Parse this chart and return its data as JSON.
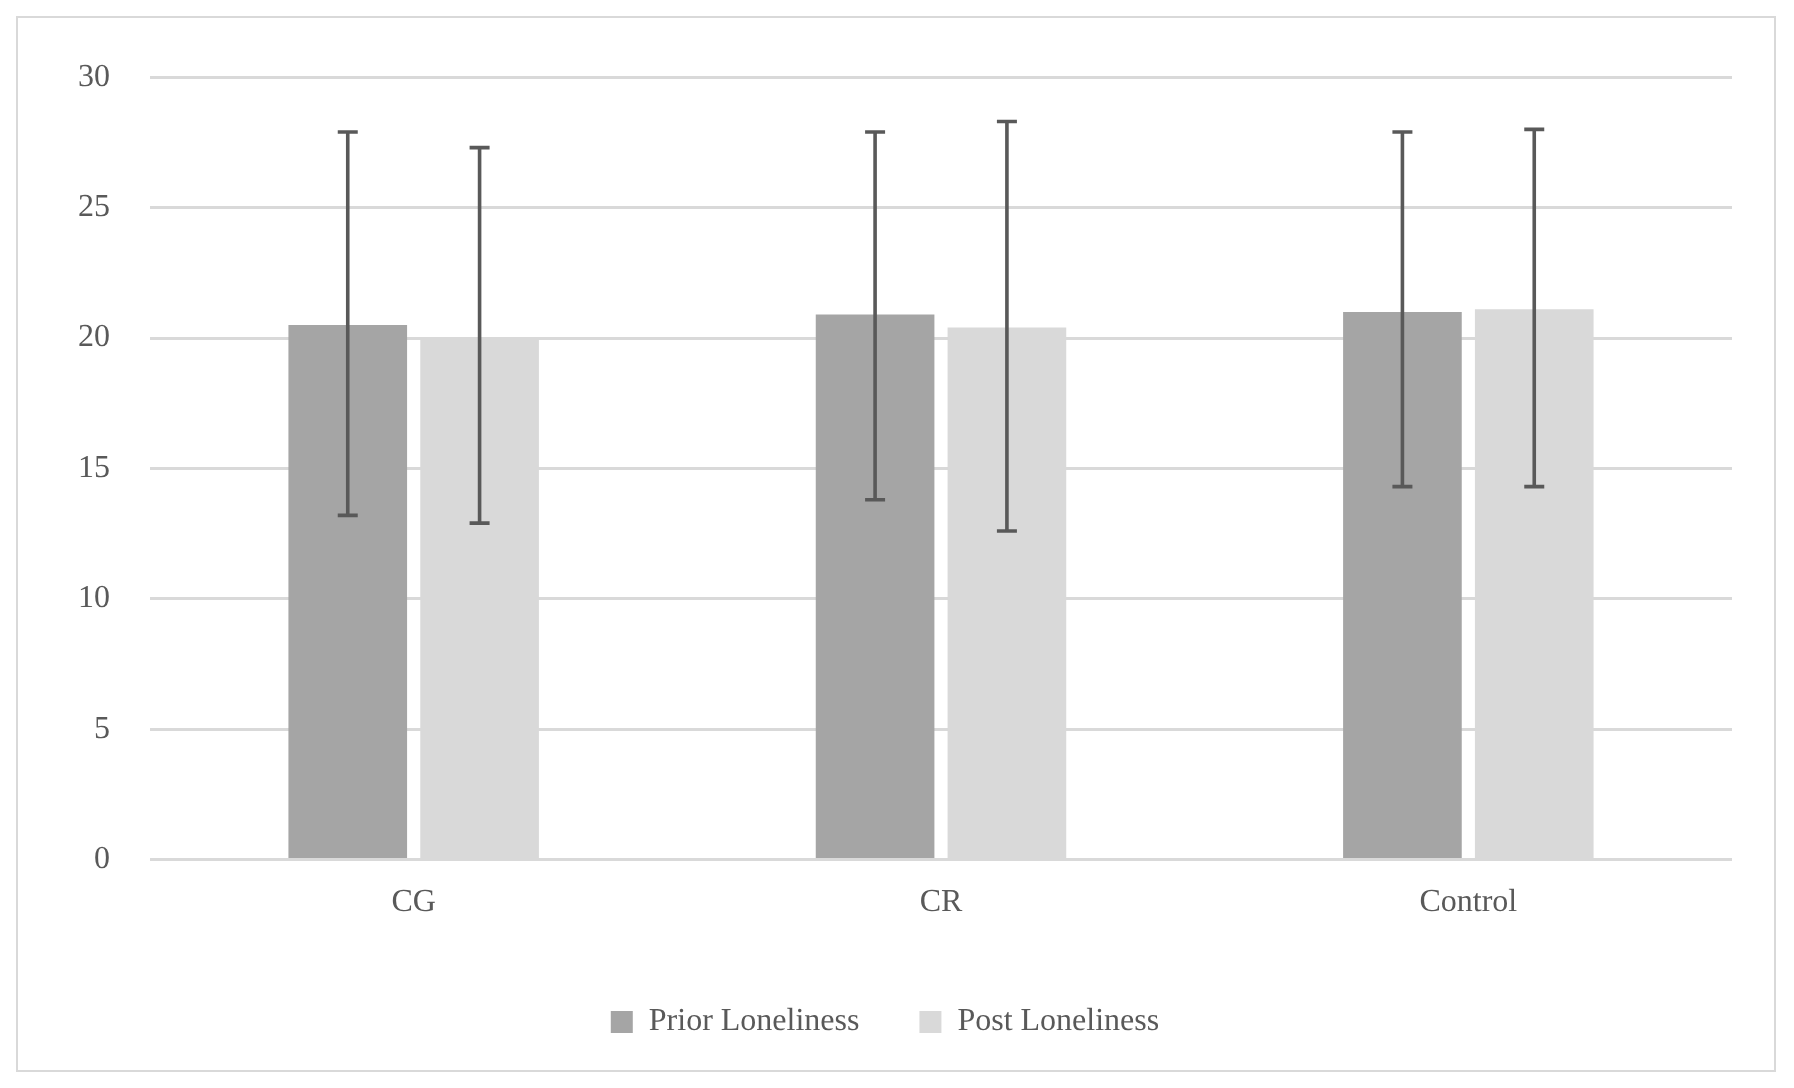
{
  "chart_data": {
    "type": "bar",
    "categories": [
      "CG",
      "CR",
      "Control"
    ],
    "series": [
      {
        "name": "Prior Loneliness",
        "color": "#a5a5a5",
        "values": [
          20.5,
          20.9,
          21.0
        ],
        "errors": [
          [
            13.2,
            27.9
          ],
          [
            13.8,
            27.9
          ],
          [
            14.3,
            27.9
          ]
        ]
      },
      {
        "name": "Post Loneliness",
        "color": "#d9d9d9",
        "values": [
          20.0,
          20.4,
          21.1
        ],
        "errors": [
          [
            12.9,
            27.3
          ],
          [
            12.6,
            28.3
          ],
          [
            14.3,
            28.0
          ]
        ]
      }
    ],
    "ylim": [
      0,
      30
    ],
    "yticks": [
      0,
      5,
      10,
      15,
      20,
      25,
      30
    ],
    "grid": "y",
    "legend": "bottom"
  }
}
